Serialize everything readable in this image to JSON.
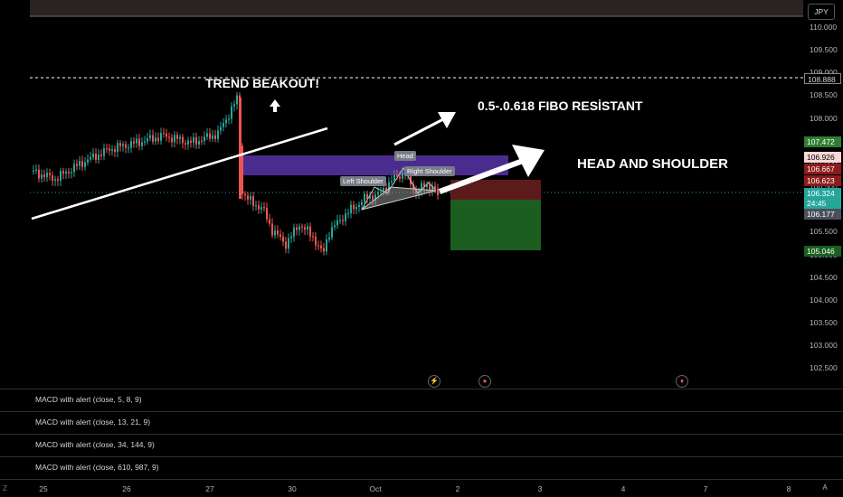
{
  "price_axis": {
    "currency": "JPY",
    "ticks": [
      "110.000",
      "109.500",
      "109.000",
      "108.500",
      "108.000",
      "107.500",
      "107.000",
      "106.500",
      "106.000",
      "105.500",
      "105.000",
      "104.500",
      "104.000",
      "103.500",
      "103.000",
      "102.500"
    ],
    "labels": {
      "dashed_level": "108.888",
      "green_level": "107.472",
      "light_level": "106.926",
      "red_level_1": "106.667",
      "red_level_2": "106.623",
      "current": "106.324",
      "countdown": "24:45",
      "gray_level": "106.177",
      "target": "105.046"
    }
  },
  "annotations": {
    "trend_breakout": "TREND BEAKOUT!",
    "fibo": "0.5-.0.618 FIBO RESİSTANT",
    "hs": "HEAD AND SHOULDER",
    "head": "Head",
    "left_shoulder": "Left Shoulder",
    "right_shoulder": "Right Shoulder"
  },
  "indicators": [
    "MACD with alert (close, 5, 8, 9)",
    "MACD with alert (close, 13, 21, 9)",
    "MACD with alert (close, 34, 144, 9)",
    "MACD with alert (close, 610, 987, 9)"
  ],
  "time_axis": [
    "25",
    "26",
    "27",
    "30",
    "Oct",
    "2",
    "3",
    "4",
    "7",
    "8"
  ],
  "icons": {
    "zoom": "Z",
    "auto": "A"
  },
  "colors": {
    "bull": "#26a69a",
    "bear": "#ef5350",
    "resistance_zone": "#4a2c8f",
    "profit_zone": "#1b5e20",
    "stop_zone": "#5d1a1a"
  }
}
